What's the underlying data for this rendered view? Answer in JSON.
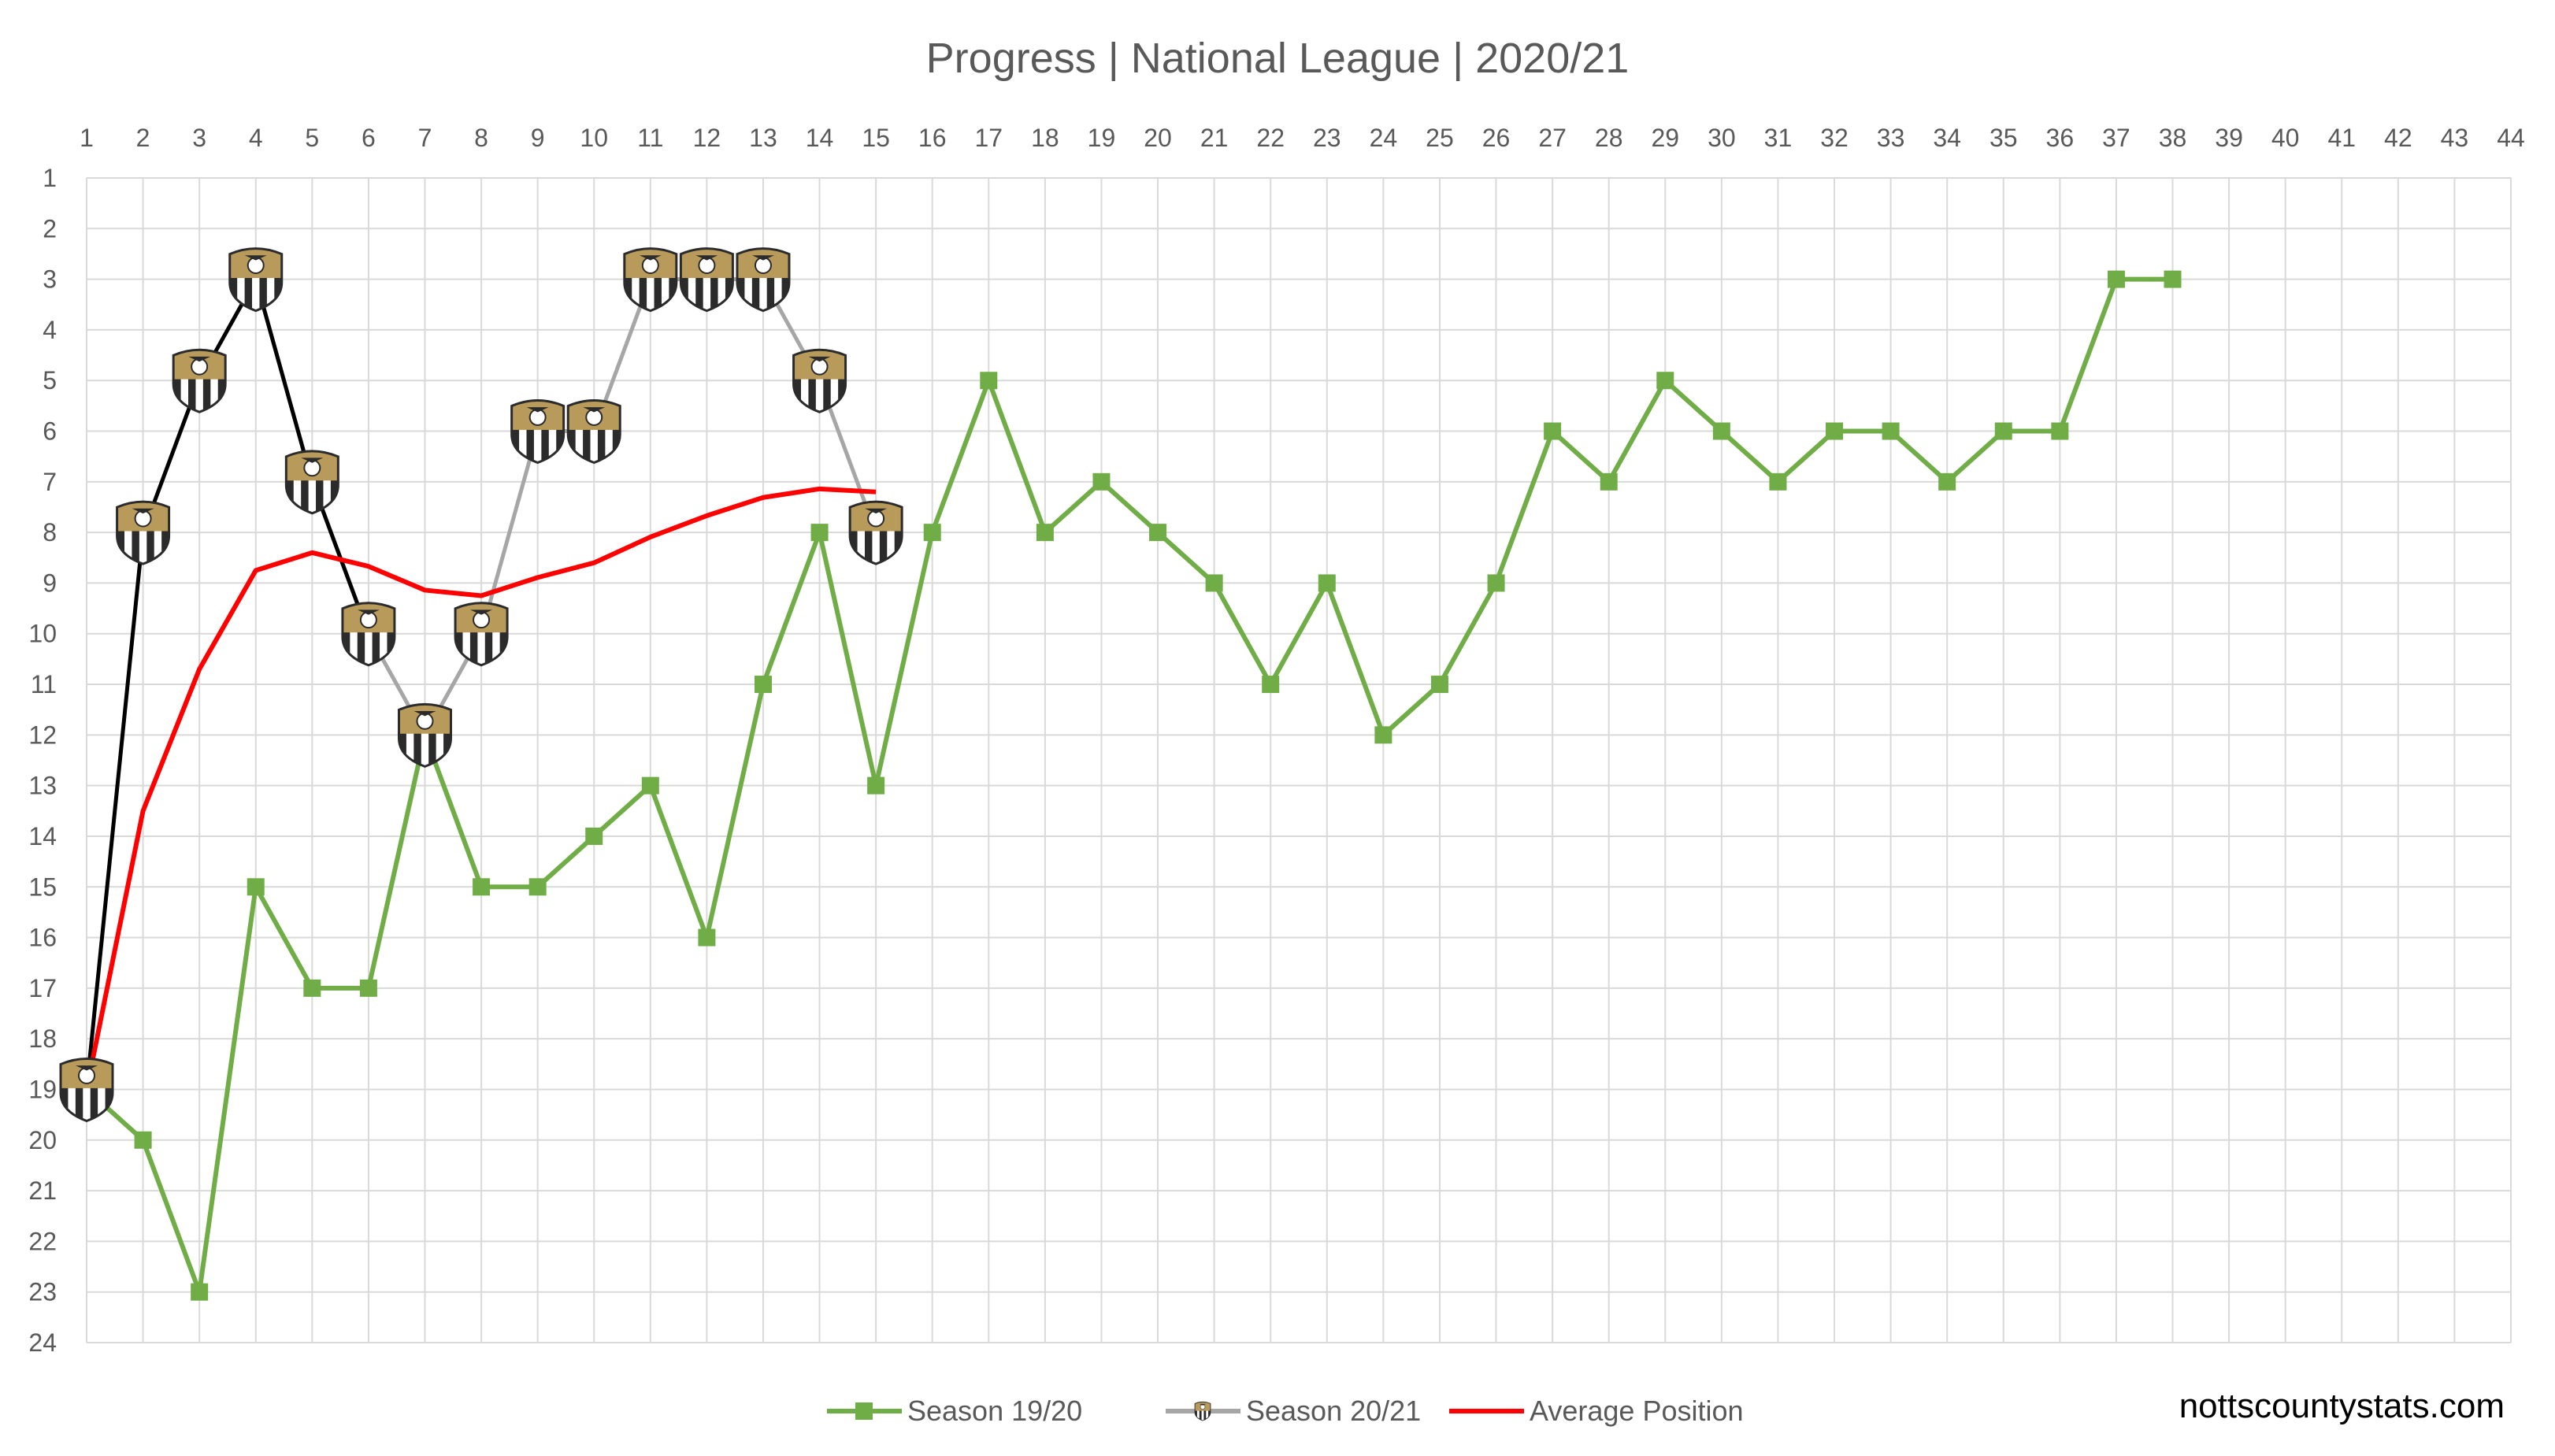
{
  "colors": {
    "grid": "#d9d9d9",
    "season_1920": "#70ad47",
    "season_2021_a": "#000000",
    "season_2021_b": "#a6a6a6",
    "average": "#ff0000",
    "text": "#595959",
    "crest_gold": "#b89a5a",
    "crest_dark": "#2b2b2b"
  },
  "chart_data": {
    "type": "line",
    "title": "Progress | National League | 2020/21",
    "x_ticks": [
      1,
      2,
      3,
      4,
      5,
      6,
      7,
      8,
      9,
      10,
      11,
      12,
      13,
      14,
      15,
      16,
      17,
      18,
      19,
      20,
      21,
      22,
      23,
      24,
      25,
      26,
      27,
      28,
      29,
      30,
      31,
      32,
      33,
      34,
      35,
      36,
      37,
      38,
      39,
      40,
      41,
      42,
      43,
      44
    ],
    "y_ticks": [
      1,
      2,
      3,
      4,
      5,
      6,
      7,
      8,
      9,
      10,
      11,
      12,
      13,
      14,
      15,
      16,
      17,
      18,
      19,
      20,
      21,
      22,
      23,
      24
    ],
    "xlim": [
      1,
      44
    ],
    "ylim": [
      1,
      24
    ],
    "y_inverted": true,
    "grid": true,
    "legend_position": "bottom",
    "series": [
      {
        "name": "Season 19/20",
        "marker": "square",
        "icon": "square-marker-icon",
        "x": [
          1,
          2,
          3,
          4,
          5,
          6,
          7,
          8,
          9,
          10,
          11,
          12,
          13,
          14,
          15,
          16,
          17,
          18,
          19,
          20,
          21,
          22,
          23,
          24,
          25,
          26,
          27,
          28,
          29,
          30,
          31,
          32,
          33,
          34,
          35,
          36,
          37,
          38
        ],
        "values": [
          19,
          20,
          23,
          15,
          17,
          17,
          12,
          15,
          15,
          14,
          13,
          16,
          11,
          8,
          13,
          8,
          5,
          8,
          7,
          8,
          9,
          11,
          9,
          12,
          11,
          9,
          6,
          7,
          5,
          6,
          7,
          6,
          6,
          7,
          6,
          6,
          3,
          3
        ]
      },
      {
        "name": "Season 20/21",
        "marker": "crest",
        "icon": "crest-icon",
        "x": [
          1,
          2,
          3,
          4,
          5,
          6,
          7,
          8,
          9,
          10,
          11,
          12,
          13,
          14,
          15
        ],
        "values": [
          19,
          8,
          5,
          3,
          7,
          10,
          12,
          10,
          6,
          6,
          3,
          3,
          3,
          5,
          8
        ]
      },
      {
        "name": "Average Position",
        "marker": "none",
        "x": [
          1,
          2,
          3,
          4,
          5,
          6,
          7,
          8,
          9,
          10,
          11,
          12,
          13,
          14,
          15
        ],
        "values": [
          19,
          13.5,
          10.7,
          8.75,
          8.4,
          8.67,
          9.14,
          9.25,
          8.89,
          8.6,
          8.09,
          7.67,
          7.31,
          7.14,
          7.2
        ]
      }
    ]
  },
  "watermark": "nottscountystats.com"
}
